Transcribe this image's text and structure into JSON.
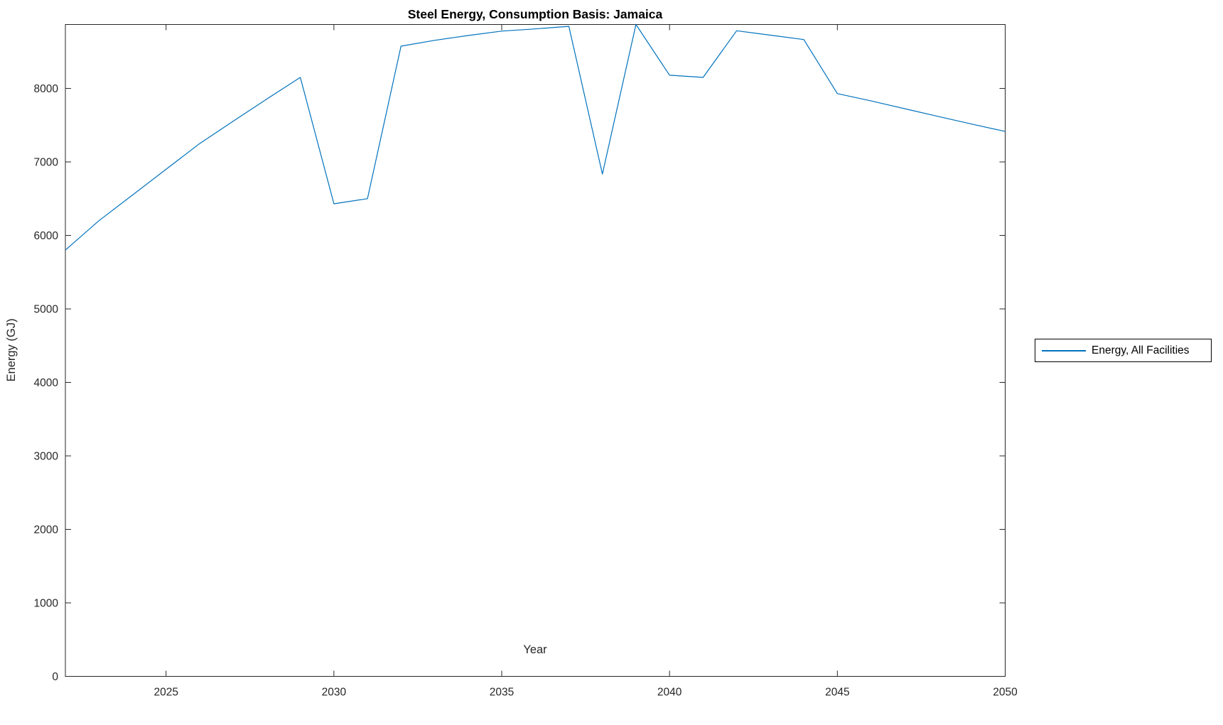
{
  "chart_data": {
    "type": "line",
    "title": "Steel Energy, Consumption Basis: Jamaica",
    "xlabel": "Year",
    "ylabel": "Energy (GJ)",
    "x": [
      2022,
      2023,
      2024,
      2025,
      2026,
      2027,
      2028,
      2029,
      2030,
      2031,
      2032,
      2033,
      2034,
      2035,
      2036,
      2037,
      2038,
      2039,
      2040,
      2041,
      2042,
      2043,
      2044,
      2045,
      2046,
      2047,
      2048,
      2049,
      2050
    ],
    "series": [
      {
        "name": "Energy, All Facilities",
        "color": "#0072BD",
        "values": [
          5800,
          6200,
          6550,
          6900,
          7250,
          7555,
          7855,
          8150,
          6430,
          6500,
          8575,
          8655,
          8720,
          8780,
          8810,
          8845,
          6835,
          8870,
          8180,
          8150,
          8785,
          8725,
          8665,
          7930,
          7830,
          7725,
          7620,
          7515,
          7415
        ]
      }
    ],
    "xlim": [
      2022,
      2050
    ],
    "ylim": [
      0,
      8870
    ],
    "xticks": [
      2025,
      2030,
      2035,
      2040,
      2045,
      2050
    ],
    "yticks": [
      0,
      1000,
      2000,
      3000,
      4000,
      5000,
      6000,
      7000,
      8000
    ],
    "grid": false,
    "legend_position": "right-outside",
    "colors": {
      "line": "#0072BD",
      "axis": "#262626",
      "text": "#262626",
      "title": "#000000",
      "background": "#ffffff"
    },
    "legend": {
      "entries": [
        "Energy, All Facilities"
      ]
    }
  }
}
